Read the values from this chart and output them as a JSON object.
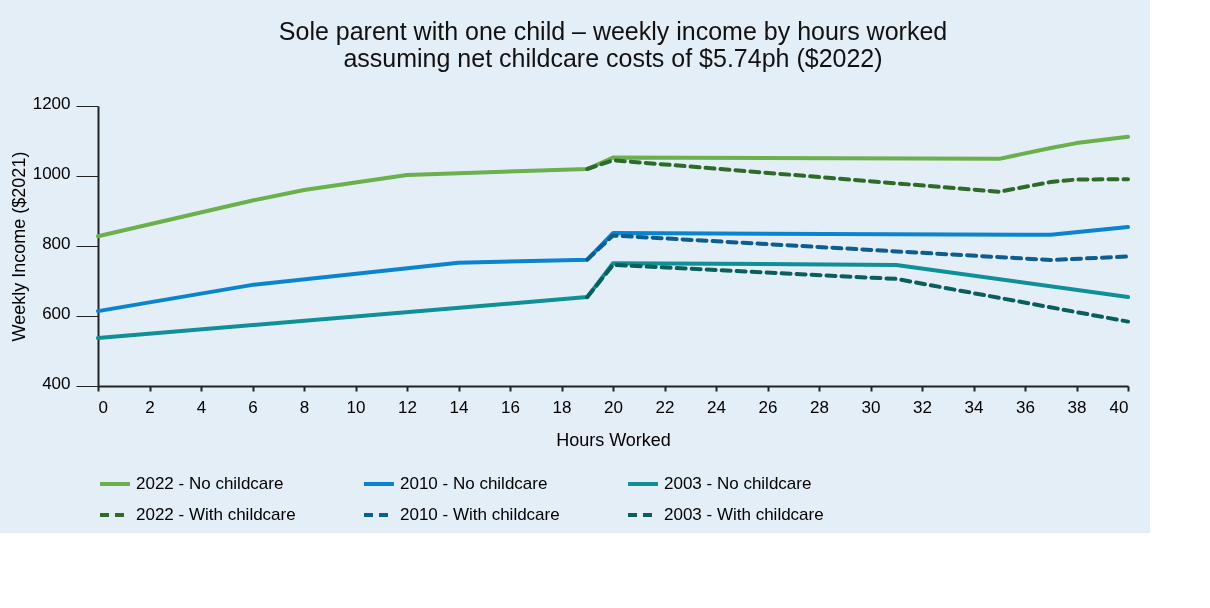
{
  "chart_data": {
    "type": "line",
    "title": "Sole parent with one child – weekly income by hours worked assuming net childcare costs of $5.74ph ($2022)",
    "xlabel": "Hours Worked",
    "ylabel": "Weekly Income ($2021)",
    "xlim": [
      0,
      40
    ],
    "xticks": [
      0,
      2,
      4,
      6,
      8,
      10,
      12,
      14,
      16,
      18,
      20,
      22,
      24,
      26,
      28,
      30,
      32,
      34,
      36,
      38,
      40
    ],
    "ylim": [
      400,
      1200
    ],
    "yticks": [
      400,
      600,
      800,
      1000,
      1200
    ],
    "grid": false,
    "legend": "bottom",
    "marker": "none",
    "series": [
      {
        "name": "2022 - No childcare",
        "color": "#6ab04c",
        "line_style": "solid",
        "x": [
          0,
          6,
          8,
          12,
          19,
          20,
          35,
          37,
          38,
          40
        ],
        "values": [
          828,
          930,
          960,
          1003,
          1020,
          1053,
          1049,
          1080,
          1094,
          1112
        ]
      },
      {
        "name": "2022 - With childcare",
        "color": "#2e6b2a",
        "line_style": "dashed",
        "x": [
          19,
          20,
          35,
          37,
          38,
          40
        ],
        "values": [
          1020,
          1045,
          955,
          983,
          990,
          991
        ]
      },
      {
        "name": "2010 - No childcare",
        "color": "#0a84cf",
        "line_style": "solid",
        "x": [
          0,
          6,
          14,
          19,
          20,
          37,
          40
        ],
        "values": [
          614,
          689,
          752,
          761,
          837,
          832,
          854
        ]
      },
      {
        "name": "2010 - With childcare",
        "color": "#0b5e8f",
        "line_style": "dashed",
        "x": [
          19,
          20,
          37,
          40
        ],
        "values": [
          761,
          830,
          760,
          770
        ]
      },
      {
        "name": "2003 - No childcare",
        "color": "#0f8f96",
        "line_style": "solid",
        "x": [
          0,
          19,
          20,
          31,
          40
        ],
        "values": [
          537,
          654,
          751,
          746,
          654
        ]
      },
      {
        "name": "2003 - With childcare",
        "color": "#0b5e5e",
        "line_style": "dashed",
        "x": [
          19,
          20,
          31,
          40
        ],
        "values": [
          654,
          746,
          706,
          584
        ]
      }
    ]
  }
}
